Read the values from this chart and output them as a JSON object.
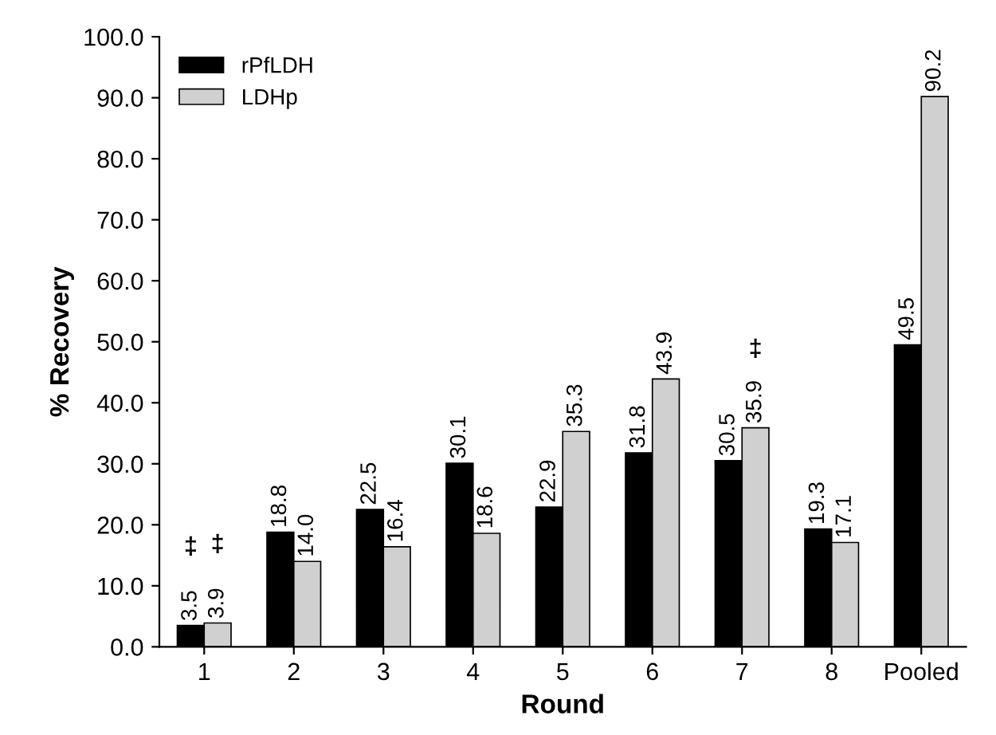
{
  "chart_data": {
    "type": "bar",
    "xlabel": "Round",
    "ylabel": "% Recovery",
    "categories": [
      "1",
      "2",
      "3",
      "4",
      "5",
      "6",
      "7",
      "8",
      "Pooled"
    ],
    "series": [
      {
        "name": "rPfLDH",
        "color": "#000000",
        "values": [
          3.5,
          18.8,
          22.5,
          30.1,
          22.9,
          31.8,
          30.5,
          19.3,
          49.5
        ],
        "value_labels": [
          "3.5",
          "18.8",
          "22.5",
          "30.1",
          "22.9",
          "31.8",
          "30.5",
          "19.3",
          "49.5"
        ]
      },
      {
        "name": "LDHp",
        "color": "#d0d0d0",
        "values": [
          3.9,
          14.0,
          16.4,
          18.6,
          35.3,
          43.9,
          35.9,
          17.1,
          90.2
        ],
        "value_labels": [
          "3.9",
          "14.0",
          "16.4",
          "18.6",
          "35.3",
          "43.9",
          "35.9",
          "17.1",
          "90.2"
        ]
      }
    ],
    "ylim": [
      0,
      100
    ],
    "yticks": [
      {
        "value": 0,
        "label": "0.0"
      },
      {
        "value": 10,
        "label": "10.0"
      },
      {
        "value": 20,
        "label": "20.0"
      },
      {
        "value": 30,
        "label": "30.0"
      },
      {
        "value": 40,
        "label": "40.0"
      },
      {
        "value": 50,
        "label": "50.0"
      },
      {
        "value": 60,
        "label": "60.0"
      },
      {
        "value": 70,
        "label": "70.0"
      },
      {
        "value": 80,
        "label": "80.0"
      },
      {
        "value": 90,
        "label": "90.0"
      },
      {
        "value": 100,
        "label": "100.0"
      }
    ],
    "annotations": [
      {
        "text": "‡",
        "x": "1",
        "y": 3.5
      },
      {
        "text": "‡",
        "x": "1",
        "y": 3.9
      },
      {
        "text": "‡",
        "x": "7",
        "y": 35.9
      }
    ],
    "legend": "top left",
    "grid": false
  }
}
